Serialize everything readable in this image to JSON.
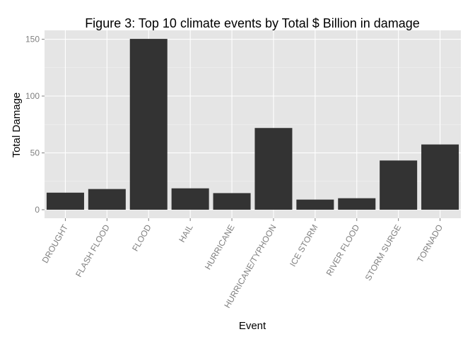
{
  "chart_data": {
    "type": "bar",
    "title": "Figure 3: Top 10 climate events by Total $ Billion in damage",
    "xlabel": "Event",
    "ylabel": "Total Damage",
    "categories": [
      "DROUGHT",
      "FLASH FLOOD",
      "FLOOD",
      "HAIL",
      "HURRICANE",
      "HURRICANE/TYPHOON",
      "ICE STORM",
      "RIVER FLOOD",
      "STORM SURGE",
      "TORNADO"
    ],
    "values": [
      15.0,
      18.2,
      150.3,
      18.8,
      14.6,
      71.9,
      8.9,
      10.1,
      43.3,
      57.4
    ],
    "yticks": [
      0,
      50,
      100,
      150
    ],
    "ylim": [
      -7.5,
      157.8
    ],
    "grid": true,
    "colors": {
      "bar": "#333333",
      "panel": "#e5e5e5",
      "grid_major": "#ffffff",
      "grid_minor": "#f2f2f2",
      "tick_text": "#7f7f7f",
      "title_text": "#000000"
    }
  }
}
